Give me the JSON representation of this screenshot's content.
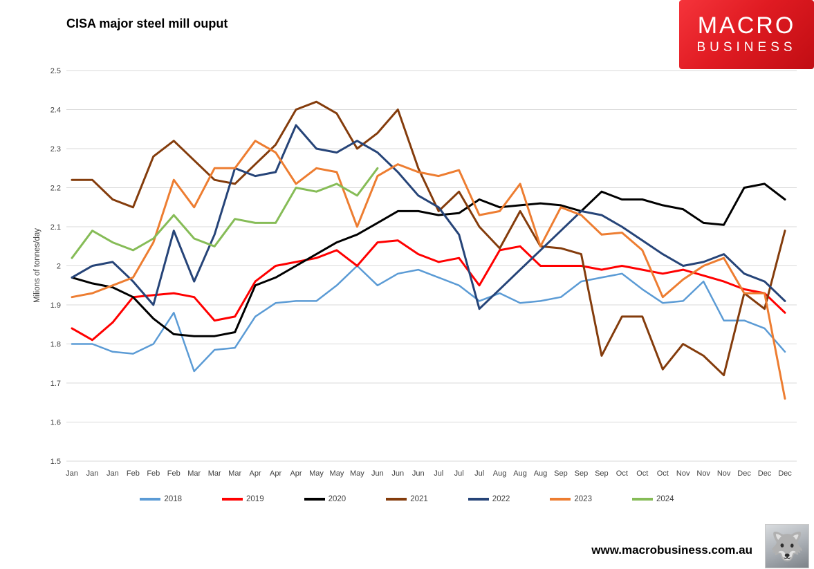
{
  "header": {
    "title": "CISA major steel mill ouput",
    "logo": {
      "line1": "MACRO",
      "line2": "BUSINESS"
    }
  },
  "footer": {
    "website": "www.macrobusiness.com.au",
    "logo_icon": "wolf-icon"
  },
  "chart_data": {
    "type": "line",
    "title": "CISA major steel mill ouput",
    "xlabel": "",
    "ylabel": "Milions of tonnes/day",
    "ylim": [
      1.5,
      2.5
    ],
    "ytick_step": 0.1,
    "grid": true,
    "legend_position": "bottom",
    "axis_text_color": "#404040",
    "gridline_color": "#d9d9d9",
    "categories": [
      "Jan",
      "Jan",
      "Jan",
      "Feb",
      "Feb",
      "Feb",
      "Mar",
      "Mar",
      "Mar",
      "Apr",
      "Apr",
      "Apr",
      "May",
      "May",
      "May",
      "Jun",
      "Jun",
      "Jun",
      "Jul",
      "Jul",
      "Jul",
      "Aug",
      "Aug",
      "Aug",
      "Sep",
      "Sep",
      "Sep",
      "Oct",
      "Oct",
      "Oct",
      "Nov",
      "Nov",
      "Nov",
      "Dec",
      "Dec",
      "Dec"
    ],
    "series": [
      {
        "name": "2018",
        "color": "#5b9bd5",
        "width": 2.5,
        "values": [
          1.8,
          1.8,
          1.78,
          1.775,
          1.8,
          1.88,
          1.73,
          1.785,
          1.79,
          1.87,
          1.905,
          1.91,
          1.91,
          1.95,
          2.0,
          1.95,
          1.98,
          1.99,
          1.97,
          1.95,
          1.91,
          1.93,
          1.905,
          1.91,
          1.92,
          1.96,
          1.97,
          1.98,
          1.94,
          1.905,
          1.91,
          1.96,
          1.86,
          1.86,
          1.84,
          1.78
        ]
      },
      {
        "name": "2019",
        "color": "#ff0000",
        "width": 3,
        "values": [
          1.84,
          1.81,
          1.855,
          1.92,
          1.925,
          1.93,
          1.92,
          1.86,
          1.87,
          1.96,
          2.0,
          2.01,
          2.02,
          2.04,
          2.0,
          2.06,
          2.065,
          2.03,
          2.01,
          2.02,
          1.95,
          2.04,
          2.05,
          2.0,
          2.0,
          2.0,
          1.99,
          2.0,
          1.99,
          1.98,
          1.99,
          1.975,
          1.96,
          1.94,
          1.93,
          1.88
        ]
      },
      {
        "name": "2020",
        "color": "#000000",
        "width": 3,
        "values": [
          1.97,
          1.955,
          1.945,
          1.92,
          1.865,
          1.825,
          1.82,
          1.82,
          1.83,
          1.95,
          1.97,
          2.0,
          2.03,
          2.06,
          2.08,
          2.11,
          2.14,
          2.14,
          2.13,
          2.135,
          2.17,
          2.15,
          2.155,
          2.16,
          2.155,
          2.14,
          2.19,
          2.17,
          2.17,
          2.155,
          2.145,
          2.11,
          2.105,
          2.2,
          2.21,
          2.17
        ]
      },
      {
        "name": "2021",
        "color": "#843c0c",
        "width": 3,
        "values": [
          2.22,
          2.22,
          2.17,
          2.15,
          2.28,
          2.32,
          2.27,
          2.22,
          2.21,
          2.26,
          2.31,
          2.4,
          2.42,
          2.39,
          2.3,
          2.34,
          2.4,
          2.25,
          2.14,
          2.19,
          2.1,
          2.045,
          2.14,
          2.05,
          2.045,
          2.03,
          1.77,
          1.87,
          1.87,
          1.735,
          1.8,
          1.77,
          1.72,
          1.93,
          1.89,
          2.09
        ]
      },
      {
        "name": "2022",
        "color": "#264478",
        "width": 3,
        "values": [
          1.97,
          2.0,
          2.01,
          1.96,
          1.9,
          2.09,
          1.96,
          2.08,
          2.25,
          2.23,
          2.24,
          2.36,
          2.3,
          2.29,
          2.32,
          2.29,
          2.24,
          2.18,
          2.15,
          2.08,
          1.89,
          1.94,
          1.99,
          2.04,
          2.09,
          2.14,
          2.13,
          2.1,
          2.065,
          2.03,
          2.0,
          2.01,
          2.03,
          1.98,
          1.96,
          1.91
        ]
      },
      {
        "name": "2023",
        "color": "#ed7d31",
        "width": 3,
        "values": [
          1.92,
          1.93,
          1.95,
          1.97,
          2.06,
          2.22,
          2.15,
          2.25,
          2.25,
          2.32,
          2.29,
          2.21,
          2.25,
          2.24,
          2.1,
          2.23,
          2.26,
          2.24,
          2.23,
          2.245,
          2.13,
          2.14,
          2.21,
          2.05,
          2.15,
          2.13,
          2.08,
          2.085,
          2.04,
          1.92,
          1.965,
          2.0,
          2.02,
          1.93,
          1.93,
          1.66
        ]
      },
      {
        "name": "2024",
        "color": "#86bc57",
        "width": 3,
        "values": [
          2.02,
          2.09,
          2.06,
          2.04,
          2.07,
          2.13,
          2.07,
          2.05,
          2.12,
          2.11,
          2.11,
          2.2,
          2.19,
          2.21,
          2.18,
          2.25
        ]
      }
    ]
  }
}
